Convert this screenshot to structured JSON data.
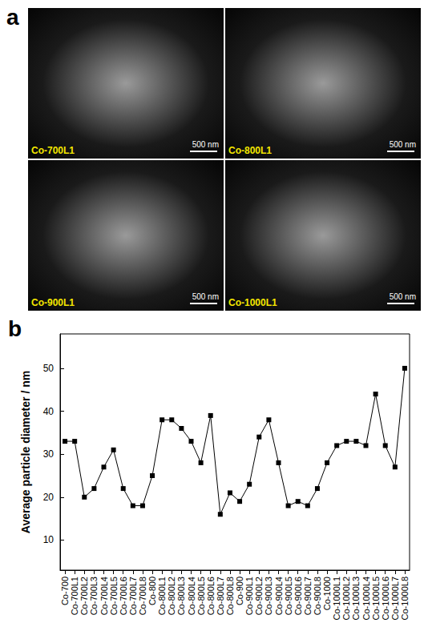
{
  "panel_a": {
    "letter": "a",
    "images": [
      {
        "label": "Co-700L1",
        "scale_bar": "500 nm"
      },
      {
        "label": "Co-800L1",
        "scale_bar": "500 nm"
      },
      {
        "label": "Co-900L1",
        "scale_bar": "500 nm"
      },
      {
        "label": "Co-1000L1",
        "scale_bar": "500 nm"
      }
    ]
  },
  "chart_data": {
    "letter": "b",
    "type": "line",
    "y_label": "Average particle diameter / nm",
    "categories": [
      "Co-700",
      "Co-700L1",
      "Co-700L2",
      "Co-700L3",
      "Co-700L4",
      "Co-700L5",
      "Co-700L6",
      "Co-700L7",
      "Co-700L8",
      "Co-800",
      "Co-800L1",
      "Co-800L2",
      "Co-800L3",
      "Co-800L4",
      "Co-800L5",
      "Co-800L6",
      "Co-800L7",
      "Co-800L8",
      "Co-900",
      "Co-900L1",
      "Co-900L2",
      "Co-900L3",
      "Co-900L4",
      "Co-900L5",
      "Co-900L6",
      "Co-900L7",
      "Co-900L8",
      "Co-1000",
      "Co-1000L1",
      "Co-1000L2",
      "Co-1000L3",
      "Co-1000L4",
      "Co-1000L5",
      "Co-1000L6",
      "Co-1000L7",
      "Co-1000L8"
    ],
    "values": [
      33,
      33,
      20,
      22,
      27,
      31,
      22,
      18,
      18,
      25,
      38,
      38,
      36,
      33,
      28,
      39,
      16,
      21,
      19,
      23,
      34,
      38,
      28,
      18,
      19,
      18,
      22,
      28,
      32,
      33,
      33,
      32,
      44,
      32,
      27,
      50
    ],
    "color": "#000000",
    "marker": "square",
    "ylim": [
      3,
      58
    ],
    "yticks": [
      10,
      20,
      30,
      40,
      50
    ],
    "grid": false
  }
}
